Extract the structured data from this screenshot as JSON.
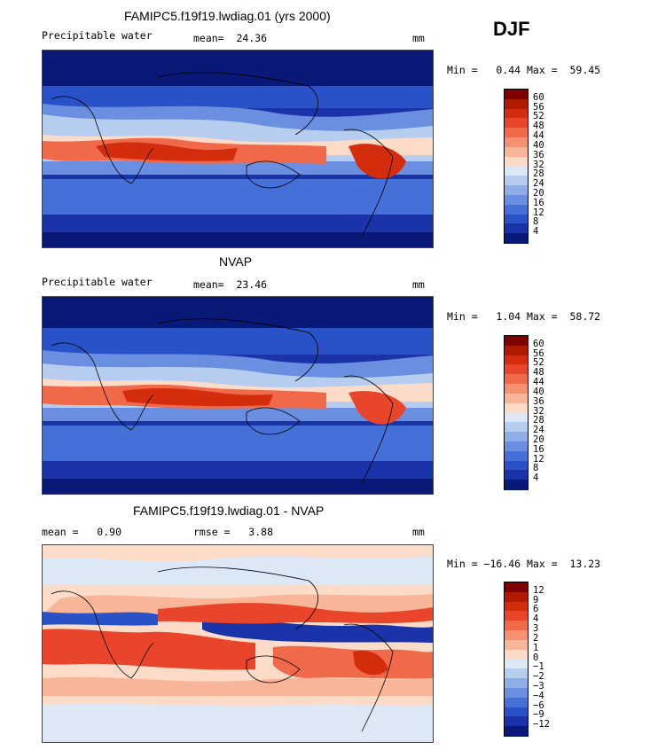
{
  "season": "DJF",
  "panels": [
    {
      "title": "FAMIPC5.f19f19.lwdiag.01 (yrs 2000)",
      "subtitle": "Precipitable water",
      "stat": "mean=  24.36",
      "units": "mm",
      "minmax": "Min =   0.44 Max =  59.45",
      "colorbar_labels": [
        "60",
        "56",
        "52",
        "48",
        "44",
        "40",
        "36",
        "32",
        "28",
        "24",
        "20",
        "16",
        "12",
        "8",
        "4"
      ],
      "colors": [
        "#7f0000",
        "#b01a00",
        "#d42d0e",
        "#e8452a",
        "#f06a4a",
        "#f59070",
        "#f9b597",
        "#fcdcc8",
        "#dde8f7",
        "#b7cdf0",
        "#8faee8",
        "#6a8fe0",
        "#4470d8",
        "#2a52c8",
        "#1a33a8",
        "#0a1878"
      ]
    },
    {
      "title": "NVAP",
      "subtitle": "Precipitable water",
      "stat": "mean=  23.46",
      "units": "mm",
      "minmax": "Min =   1.04 Max =  58.72",
      "colorbar_labels": [
        "60",
        "56",
        "52",
        "48",
        "44",
        "40",
        "36",
        "32",
        "28",
        "24",
        "20",
        "16",
        "12",
        "8",
        "4"
      ],
      "colors": [
        "#7f0000",
        "#b01a00",
        "#d42d0e",
        "#e8452a",
        "#f06a4a",
        "#f59070",
        "#f9b597",
        "#fcdcc8",
        "#dde8f7",
        "#b7cdf0",
        "#8faee8",
        "#6a8fe0",
        "#4470d8",
        "#2a52c8",
        "#1a33a8",
        "#0a1878"
      ]
    },
    {
      "title": "FAMIPC5.f19f19.lwdiag.01 - NVAP",
      "stat_left": "mean =   0.90",
      "stat": "rmse =   3.88",
      "units": "mm",
      "minmax": "Min = −16.46 Max =  13.23",
      "colorbar_labels": [
        "12",
        "9",
        "6",
        "4",
        "3",
        "2",
        "1",
        "0",
        "−1",
        "−2",
        "−3",
        "−4",
        "−6",
        "−9",
        "−12"
      ],
      "colors": [
        "#7f0000",
        "#b01a00",
        "#d42d0e",
        "#e8452a",
        "#f06a4a",
        "#f59070",
        "#f9b597",
        "#fcdcc8",
        "#dde8f7",
        "#b7cdf0",
        "#8faee8",
        "#6a8fe0",
        "#4470d8",
        "#2a52c8",
        "#1a33a8",
        "#0a1878"
      ]
    }
  ],
  "chart_data": [
    {
      "type": "heatmap",
      "title": "FAMIPC5.f19f19.lwdiag.01 (yrs 2000)",
      "subtitle": "Precipitable water",
      "units": "mm",
      "mean": 24.36,
      "min": 0.44,
      "max": 59.45,
      "levels": [
        4,
        8,
        12,
        16,
        20,
        24,
        28,
        32,
        36,
        40,
        44,
        48,
        52,
        56,
        60
      ]
    },
    {
      "type": "heatmap",
      "title": "NVAP",
      "subtitle": "Precipitable water",
      "units": "mm",
      "mean": 23.46,
      "min": 1.04,
      "max": 58.72,
      "levels": [
        4,
        8,
        12,
        16,
        20,
        24,
        28,
        32,
        36,
        40,
        44,
        48,
        52,
        56,
        60
      ]
    },
    {
      "type": "heatmap",
      "title": "FAMIPC5.f19f19.lwdiag.01 - NVAP",
      "units": "mm",
      "mean": 0.9,
      "rmse": 3.88,
      "min": -16.46,
      "max": 13.23,
      "levels": [
        -12,
        -9,
        -6,
        -4,
        -3,
        -2,
        -1,
        0,
        1,
        2,
        3,
        4,
        6,
        9,
        12
      ]
    }
  ]
}
